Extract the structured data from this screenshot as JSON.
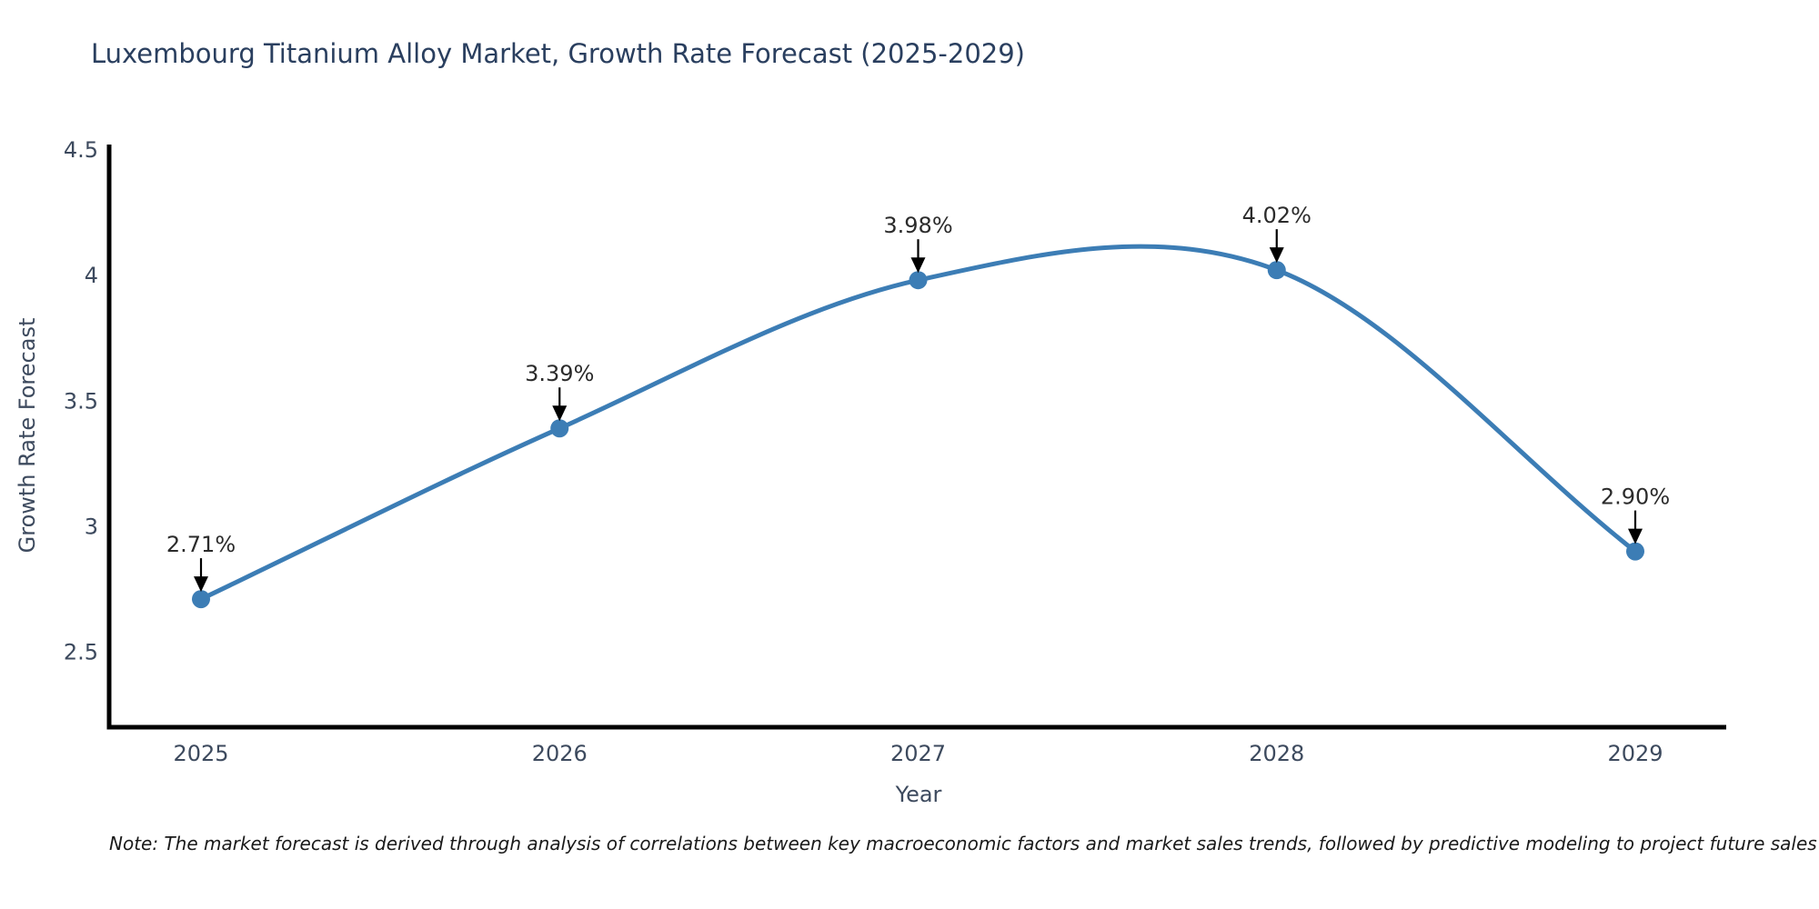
{
  "chart": {
    "note": "Note: The market forecast is derived through analysis of correlations between key macroeconomic factors and market sales trends, followed by predictive modeling to project future sales",
    "colors": {
      "line": "#3c7db5",
      "marker": "#3c7db5",
      "title_text": "#2a3f5f",
      "axis_text": "#3d4a5e",
      "annotation_text": "#2b2b2b",
      "annotation_arrow": "#000000",
      "axis_line": "#000000",
      "background": "#ffffff"
    }
  },
  "chart_data": {
    "type": "line",
    "line_shape": "spline",
    "title": "Luxembourg Titanium Alloy Market, Growth Rate Forecast (2025-2029)",
    "xlabel": "Year",
    "ylabel": "Growth Rate Forecast",
    "x": [
      2025,
      2026,
      2027,
      2028,
      2029
    ],
    "values": [
      2.71,
      3.39,
      3.98,
      4.02,
      2.9
    ],
    "point_labels": [
      "2.71%",
      "3.39%",
      "3.98%",
      "4.02%",
      "2.90%"
    ],
    "x_tick_labels": [
      "2025",
      "2026",
      "2027",
      "2028",
      "2029"
    ],
    "y_tick_values": [
      4.5,
      4,
      3.5,
      3,
      2.5
    ],
    "y_tick_labels": [
      "4.5",
      "4",
      "3.5",
      "3",
      "2.5"
    ],
    "ylim": [
      2.2,
      4.52
    ],
    "grid": false,
    "legend_position": "none",
    "annotations_have_arrows": true
  }
}
